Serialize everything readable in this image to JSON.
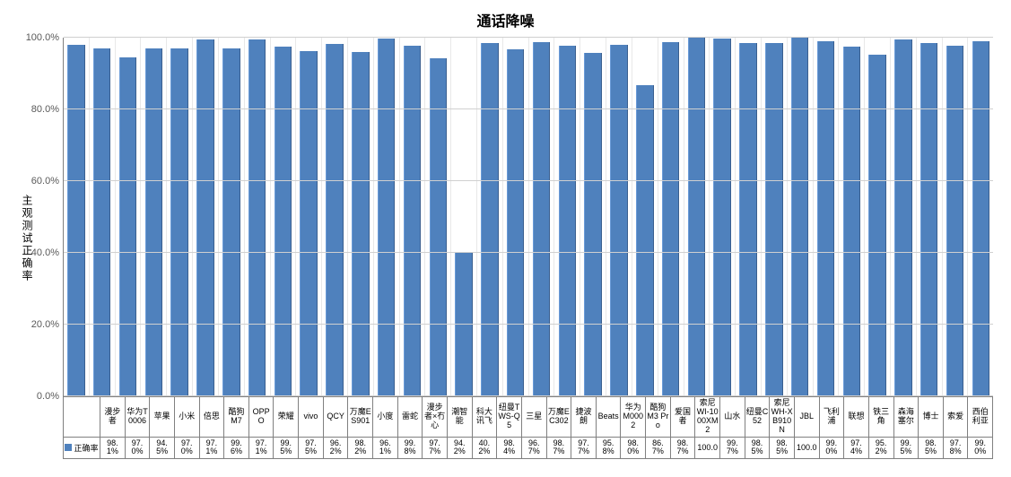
{
  "chart": {
    "type": "bar",
    "title": "通话降噪",
    "y_axis_title": "主观测试正确率",
    "ylim": [
      0,
      100
    ],
    "ytick_step": 20,
    "ytick_format_suffix": ".0%",
    "bar_color": "#4f81bd",
    "grid_color": "#d0d0d0",
    "background_color": "#ffffff",
    "title_fontsize": 16,
    "label_fontsize": 11,
    "bar_width": 0.7,
    "series_label": "正确率",
    "categories": [
      "漫步者",
      "华为T0006",
      "苹果",
      "小米",
      "倍思",
      "酷狗M7",
      "OPPO",
      "荣耀",
      "vivo",
      "QCY",
      "万魔ES901",
      "小度",
      "雷蛇",
      "漫步者×冇心",
      "潮智能",
      "科大讯飞",
      "纽曼TWS-Q5",
      "三星",
      "万魔EC302",
      "捷波朗",
      "Beats",
      "华为M0002",
      "酷狗M3 Pro",
      "爱国者",
      "索尼WI-1000XM2",
      "山水",
      "纽曼C52",
      "索尼WH-XB910N",
      "JBL",
      "飞利浦",
      "联想",
      "铁三角",
      "森海塞尔",
      "博士",
      "索爱",
      "西伯利亚"
    ],
    "values": [
      98.1,
      97.0,
      94.5,
      97.0,
      97.1,
      99.6,
      97.1,
      99.5,
      97.5,
      96.2,
      98.2,
      96.1,
      99.8,
      97.7,
      94.2,
      40.2,
      98.4,
      96.7,
      98.7,
      97.7,
      95.8,
      98.0,
      86.7,
      98.7,
      100.0,
      99.7,
      98.5,
      98.5,
      100.0,
      99.0,
      97.4,
      95.2,
      99.5,
      98.5,
      97.8,
      99.0
    ],
    "value_labels": [
      "98.1%",
      "97.0%",
      "94.5%",
      "97.0%",
      "97.1%",
      "99.6%",
      "97.1%",
      "99.5%",
      "97.5%",
      "96.2%",
      "98.2%",
      "96.1%",
      "99.8%",
      "97.7%",
      "94.2%",
      "40.2%",
      "98.4%",
      "96.7%",
      "98.7%",
      "97.7%",
      "95.8%",
      "98.0%",
      "86.7%",
      "98.7%",
      "100.0",
      "99.7%",
      "98.5%",
      "98.5%",
      "100.0",
      "99.0%",
      "97.4%",
      "95.2%",
      "99.5%",
      "98.5%",
      "97.8%",
      "99.0%"
    ],
    "yticks": [
      {
        "v": 0,
        "label": "0.0%"
      },
      {
        "v": 20,
        "label": "20.0%"
      },
      {
        "v": 40,
        "label": "40.0%"
      },
      {
        "v": 60,
        "label": "60.0%"
      },
      {
        "v": 80,
        "label": "80.0%"
      },
      {
        "v": 100,
        "label": "100.0%"
      }
    ]
  }
}
